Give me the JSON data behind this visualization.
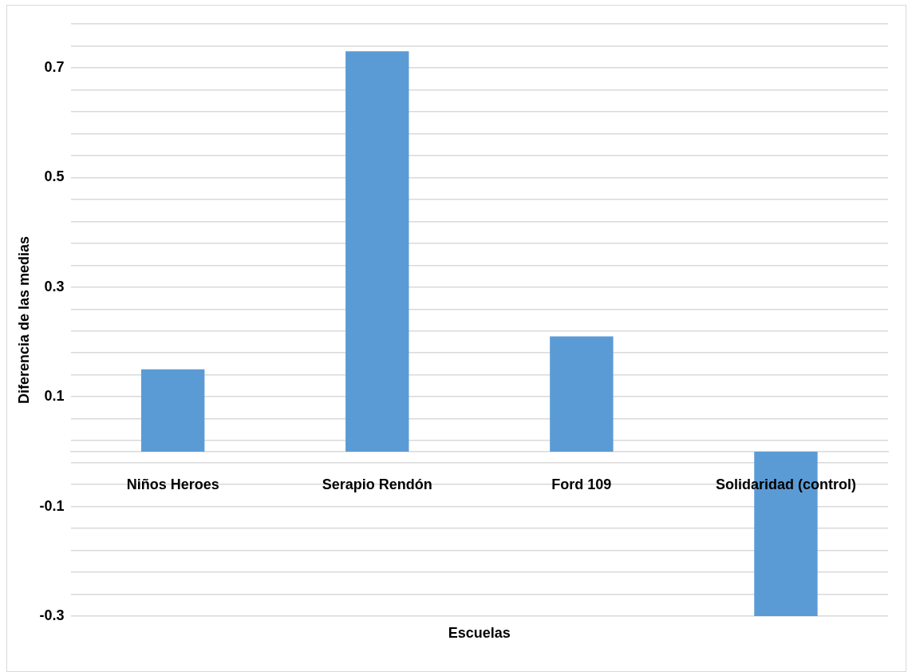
{
  "chart_data": {
    "type": "bar",
    "xlabel": "Escuelas",
    "ylabel": "Diferencia de las medias",
    "categories": [
      "Niños Heroes",
      "Serapio Rendón",
      "Ford 109",
      "Solidaridad (control)"
    ],
    "values": [
      0.15,
      0.73,
      0.21,
      -0.3
    ],
    "color": "#5b9bd5",
    "ylim": [
      -0.3,
      0.78
    ],
    "yticks": [
      -0.3,
      {
        "value": -0.26,
        "label": null
      },
      {
        "value": -0.22,
        "label": null
      },
      {
        "value": -0.18,
        "label": null
      },
      {
        "value": -0.14,
        "label": null
      },
      -0.1,
      {
        "value": -0.06,
        "label": null
      },
      {
        "value": -0.02,
        "label": null
      },
      {
        "value": 0.02,
        "label": null
      },
      {
        "value": 0.06,
        "label": null
      },
      0.1,
      {
        "value": 0.14,
        "label": null
      },
      {
        "value": 0.18,
        "label": null
      },
      {
        "value": 0.22,
        "label": null
      },
      {
        "value": 0.26,
        "label": null
      },
      0.3,
      {
        "value": 0.34,
        "label": null
      },
      {
        "value": 0.38,
        "label": null
      },
      {
        "value": 0.42,
        "label": null
      },
      {
        "value": 0.46,
        "label": null
      },
      0.5,
      {
        "value": 0.54,
        "label": null
      },
      {
        "value": 0.58,
        "label": null
      },
      {
        "value": 0.62,
        "label": null
      },
      {
        "value": 0.66,
        "label": null
      },
      0.7,
      {
        "value": 0.74,
        "label": null
      },
      {
        "value": 0.78,
        "label": null
      }
    ],
    "grid": true
  }
}
